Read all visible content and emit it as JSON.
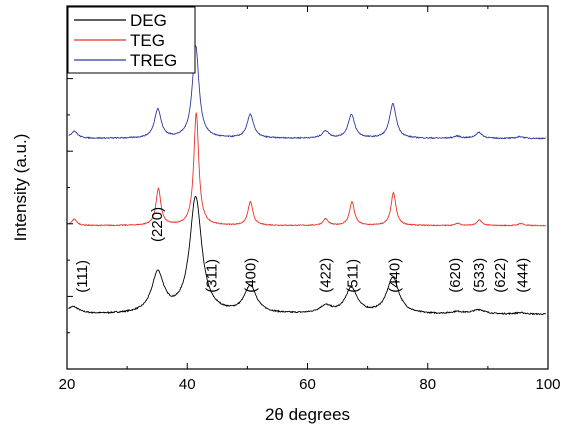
{
  "chart_data": {
    "type": "line",
    "title": "",
    "xlabel": "2θ degrees",
    "ylabel": "Intensity (a.u.)",
    "xlim": [
      20,
      100
    ],
    "xticks": [
      20,
      40,
      60,
      80,
      100
    ],
    "ylim": [
      0,
      100
    ],
    "grid": false,
    "legend_position": "top-left",
    "series": [
      {
        "name": "DEG",
        "color": "#000000",
        "baseline": 15,
        "width_scale": 2.2,
        "noise": 0.35,
        "peaks": [
          {
            "x": 21.0,
            "h": 2.0
          },
          {
            "x": 35.1,
            "h": 11.0
          },
          {
            "x": 41.4,
            "h": 32.0
          },
          {
            "x": 50.5,
            "h": 7.5
          },
          {
            "x": 63.0,
            "h": 2.0
          },
          {
            "x": 67.3,
            "h": 7.0
          },
          {
            "x": 74.2,
            "h": 10.0
          },
          {
            "x": 84.9,
            "h": 0.6
          },
          {
            "x": 88.5,
            "h": 1.2
          },
          {
            "x": 95.4,
            "h": 0.4
          }
        ]
      },
      {
        "name": "TEG",
        "color": "#e8322a",
        "baseline": 39.5,
        "width_scale": 0.9,
        "noise": 0.25,
        "peaks": [
          {
            "x": 21.2,
            "h": 1.8
          },
          {
            "x": 35.2,
            "h": 10.0
          },
          {
            "x": 41.5,
            "h": 31.0
          },
          {
            "x": 50.5,
            "h": 6.5
          },
          {
            "x": 63.0,
            "h": 1.8
          },
          {
            "x": 67.4,
            "h": 6.5
          },
          {
            "x": 74.3,
            "h": 9.0
          },
          {
            "x": 85.0,
            "h": 0.6
          },
          {
            "x": 88.6,
            "h": 1.5
          },
          {
            "x": 95.5,
            "h": 0.6
          }
        ]
      },
      {
        "name": "TREG",
        "color": "#2d3a9e",
        "baseline": 63.5,
        "width_scale": 1.2,
        "noise": 0.3,
        "peaks": [
          {
            "x": 21.2,
            "h": 2.0
          },
          {
            "x": 35.1,
            "h": 8.0
          },
          {
            "x": 41.4,
            "h": 25.5
          },
          {
            "x": 50.5,
            "h": 6.5
          },
          {
            "x": 63.0,
            "h": 2.0
          },
          {
            "x": 67.3,
            "h": 6.5
          },
          {
            "x": 74.2,
            "h": 9.5
          },
          {
            "x": 84.9,
            "h": 0.6
          },
          {
            "x": 88.5,
            "h": 1.6
          },
          {
            "x": 95.4,
            "h": 0.5
          }
        ]
      }
    ],
    "annotations": [
      {
        "text": "(111)",
        "x": 22.5,
        "y": 21
      },
      {
        "text": "(220)",
        "x": 35.0,
        "y": 35
      },
      {
        "text": "(311)",
        "x": 44.0,
        "y": 21
      },
      {
        "text": "(400)",
        "x": 50.5,
        "y": 21
      },
      {
        "text": "(422)",
        "x": 63.0,
        "y": 21
      },
      {
        "text": "(511)",
        "x": 67.5,
        "y": 21
      },
      {
        "text": "(440)",
        "x": 74.5,
        "y": 21
      },
      {
        "text": "(620)",
        "x": 84.5,
        "y": 21
      },
      {
        "text": "(533)",
        "x": 88.5,
        "y": 21
      },
      {
        "text": "(622)",
        "x": 92.0,
        "y": 21
      },
      {
        "text": "(444)",
        "x": 95.8,
        "y": 21
      }
    ]
  }
}
